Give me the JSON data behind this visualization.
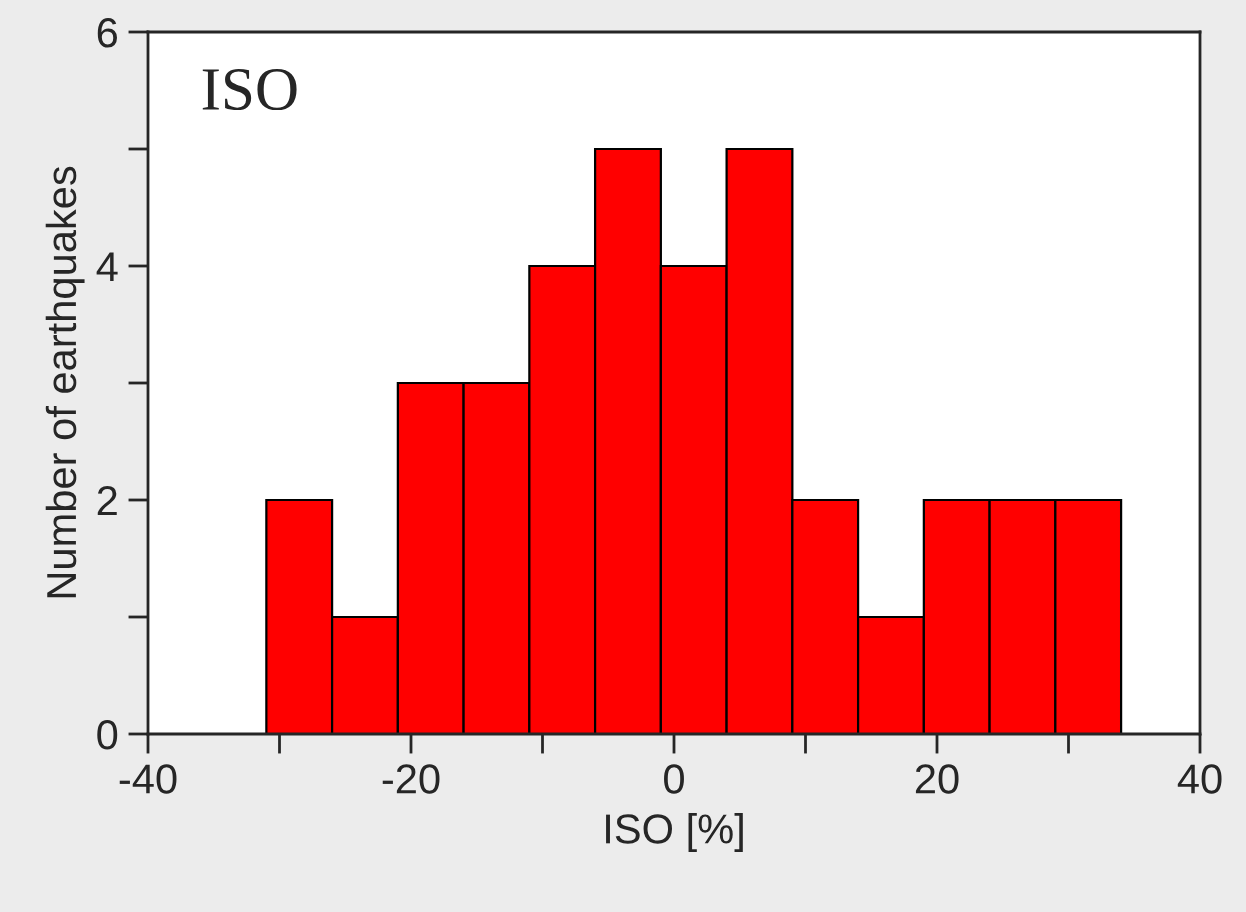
{
  "chart_data": {
    "type": "histogram",
    "xlabel": "ISO [%]",
    "ylabel": "Number of earthquakes",
    "annotations": [
      "ISO"
    ],
    "bins": [
      -31,
      -26,
      -21,
      -16,
      -11,
      -6,
      -1,
      4,
      9,
      14,
      19,
      24,
      29,
      34
    ],
    "values": [
      2,
      1,
      3,
      3,
      4,
      5,
      4,
      5,
      2,
      1,
      2,
      2,
      2
    ],
    "color": "#ff0000",
    "xlim": [
      -40,
      40
    ],
    "ylim": [
      0,
      6
    ],
    "xticks": [
      -40,
      {
        "value": -30,
        "label": null
      },
      -20,
      {
        "value": -10,
        "label": null
      },
      0,
      {
        "value": 10,
        "label": null
      },
      20,
      {
        "value": 30,
        "label": null
      },
      40
    ],
    "yticks": [
      0,
      {
        "value": 1,
        "label": null
      },
      2,
      {
        "value": 3,
        "label": null
      },
      4,
      {
        "value": 5,
        "label": null
      },
      6
    ],
    "grid": false,
    "legend": false
  }
}
